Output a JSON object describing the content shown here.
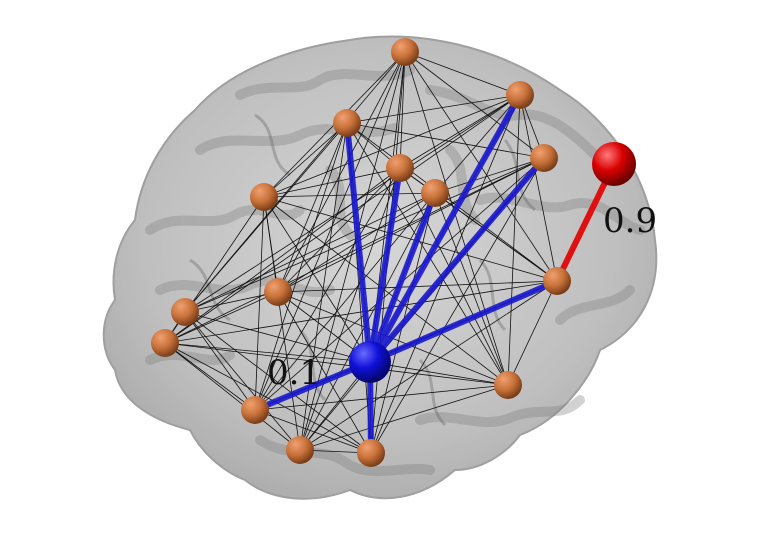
{
  "labels": {
    "hub_weight": "0.1",
    "external_weight": "0.9"
  },
  "colors": {
    "brain_fill": "#bdbdbd",
    "brain_fold": "#8a8a8a",
    "node": "#c8713a",
    "hub": "#1010d8",
    "hub_edge": "#1818d0",
    "external_node": "#d80000",
    "external_edge": "#e01010",
    "mesh_edge": "#111111"
  },
  "graph": {
    "node_count": 15,
    "hub_connections": [
      0,
      1,
      2,
      3,
      4,
      5,
      6,
      7
    ],
    "external_link": {
      "from": "external",
      "to": 5
    }
  }
}
